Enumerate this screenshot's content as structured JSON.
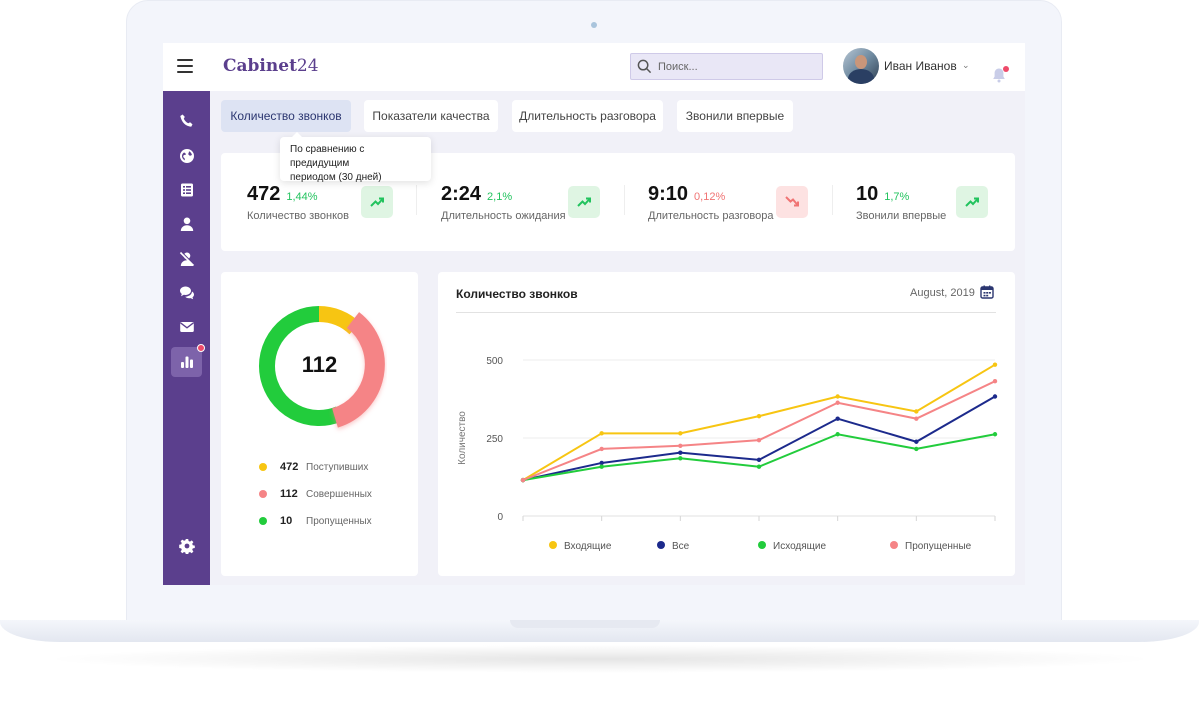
{
  "app": {
    "logo_text": "Cabinet",
    "logo_num": "24",
    "search_placeholder": "Поиск...",
    "user_name": "Иван Иванов"
  },
  "sidebar": {
    "items": [
      {
        "icon": "phone-icon"
      },
      {
        "icon": "globe-icon"
      },
      {
        "icon": "list-icon"
      },
      {
        "icon": "user-icon"
      },
      {
        "icon": "user-block-icon"
      },
      {
        "icon": "chat-icon"
      },
      {
        "icon": "mail-icon"
      },
      {
        "icon": "bar-chart-icon",
        "active": true,
        "badge": true
      }
    ],
    "settings_icon": "gear-icon"
  },
  "tabs": [
    {
      "label": "Количество звонков",
      "active": true
    },
    {
      "label": "Показатели качества",
      "active": false
    },
    {
      "label": "Длительность разговора",
      "active": false
    },
    {
      "label": "Звонили впервые",
      "active": false
    }
  ],
  "tooltip": {
    "line1": "По сравнению с предидущим",
    "line2": "периодом (30 дней)"
  },
  "stats": [
    {
      "value": "472",
      "pct": "1,44%",
      "label": "Количество звонков",
      "trend": "up"
    },
    {
      "value": "2:24",
      "pct": "2,1%",
      "label": "Длительность ожидания",
      "trend": "up"
    },
    {
      "value": "9:10",
      "pct": "0,12%",
      "label": "Длительность разговора",
      "trend": "down"
    },
    {
      "value": "10",
      "pct": "1,7%",
      "label": "Звонили впервые",
      "trend": "up"
    }
  ],
  "colors": {
    "accent": "#5b3f8d",
    "up": "#22c35e",
    "down": "#f07474",
    "yellow": "#f7c512",
    "navy": "#1c2a8c",
    "green": "#22cc3c",
    "salmon": "#f58486"
  },
  "donut": {
    "center": "112",
    "legend": [
      {
        "num": "472",
        "label": "Поступивших",
        "color": "#f7c512"
      },
      {
        "num": "112",
        "label": "Совершенных",
        "color": "#f58486"
      },
      {
        "num": "10",
        "label": "Пропущенных",
        "color": "#22cc3c"
      }
    ]
  },
  "chart_card": {
    "title": "Количество звонков",
    "date": "August, 2019"
  },
  "chart_data": {
    "type": "line",
    "title": "Количество звонков",
    "xlabel": "",
    "ylabel": "Количество",
    "ylim": [
      0,
      500
    ],
    "yticks": [
      0,
      250,
      500
    ],
    "x": [
      1,
      2,
      3,
      4,
      5,
      6,
      7
    ],
    "series": [
      {
        "name": "Входящие",
        "color": "#f7c512",
        "values": [
          115,
          265,
          265,
          320,
          383,
          335,
          485
        ]
      },
      {
        "name": "Все",
        "color": "#1c2a8c",
        "values": [
          115,
          170,
          203,
          180,
          312,
          238,
          383
        ]
      },
      {
        "name": "Исходящие",
        "color": "#22cc3c",
        "values": [
          115,
          158,
          185,
          158,
          262,
          215,
          262
        ]
      },
      {
        "name": "Пропущенные",
        "color": "#f58486",
        "values": [
          115,
          215,
          225,
          243,
          363,
          312,
          432
        ]
      }
    ],
    "grid": true,
    "legend_position": "bottom"
  }
}
